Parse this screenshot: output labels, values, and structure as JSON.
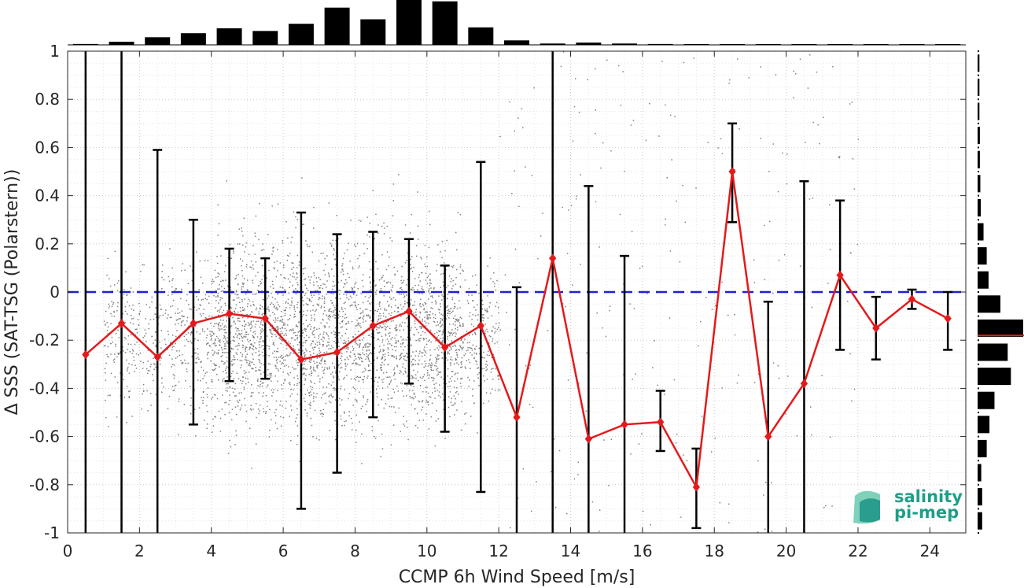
{
  "chart_data": {
    "type": "line",
    "xlabel": "CCMP 6h Wind Speed [m/s]",
    "ylabel": "Δ SSS (SAT-TSG (Polarstern))",
    "xlim": [
      0,
      25
    ],
    "ylim": [
      -1,
      1
    ],
    "xticks": [
      0,
      2,
      4,
      6,
      8,
      10,
      12,
      14,
      16,
      18,
      20,
      22,
      24
    ],
    "yticks": [
      -1,
      -0.8,
      -0.6,
      -0.4,
      -0.2,
      0,
      0.2,
      0.4,
      0.6,
      0.8,
      1
    ],
    "grid": true,
    "reference_line": {
      "y": 0,
      "style": "dashed",
      "color": "#1f1fd6"
    },
    "series": [
      {
        "color": "#e31a1c",
        "marker": "diamond",
        "x": [
          0.5,
          1.5,
          2.5,
          3.5,
          4.5,
          5.5,
          6.5,
          7.5,
          8.5,
          9.5,
          10.5,
          11.5,
          12.5,
          13.5,
          14.5,
          15.5,
          16.5,
          17.5,
          18.5,
          19.5,
          20.5,
          21.5,
          22.5,
          23.5,
          24.5
        ],
        "y": [
          -0.26,
          -0.13,
          -0.27,
          -0.13,
          -0.09,
          -0.11,
          -0.28,
          -0.25,
          -0.14,
          -0.08,
          -0.23,
          -0.14,
          -0.52,
          0.14,
          -0.61,
          -0.55,
          -0.54,
          -0.81,
          0.5,
          -0.6,
          -0.38,
          0.07,
          -0.15,
          -0.03,
          -0.11
        ],
        "err_low": [
          -1.0,
          -1.0,
          -1.0,
          -0.55,
          -0.37,
          -0.36,
          -0.9,
          -0.75,
          -0.52,
          -0.38,
          -0.58,
          -0.83,
          -1.0,
          -1.0,
          -1.0,
          -1.0,
          -0.66,
          -0.98,
          0.29,
          -1.0,
          -1.0,
          -0.24,
          -0.28,
          -0.07,
          -0.24
        ],
        "err_high": [
          1.0,
          1.0,
          0.59,
          0.3,
          0.18,
          0.14,
          0.33,
          0.24,
          0.25,
          0.22,
          0.11,
          0.54,
          0.02,
          1.0,
          0.44,
          0.15,
          -0.41,
          -0.65,
          0.7,
          -0.04,
          0.46,
          0.38,
          -0.02,
          0.01,
          0.0
        ]
      }
    ],
    "scatter_color": "#808080",
    "scatter_clusters": [
      {
        "x_range": [
          1,
          12
        ],
        "y_mean": -0.2,
        "y_spread": 0.25
      },
      {
        "x_range": [
          4,
          11
        ],
        "y_mean": -0.15,
        "y_spread": 0.35
      }
    ],
    "top_histogram": {
      "bin_centers": [
        0.5,
        1.5,
        2.5,
        3.5,
        4.5,
        5.5,
        6.5,
        7.5,
        8.5,
        9.5,
        10.5,
        11.5,
        12.5,
        13.5,
        14.5,
        15.5,
        16.5,
        17.5,
        18.5,
        19.5,
        20.5,
        21.5,
        22.5,
        23.5,
        24.5
      ],
      "relative_heights": [
        0.02,
        0.07,
        0.17,
        0.26,
        0.37,
        0.31,
        0.47,
        0.83,
        0.57,
        1.0,
        0.97,
        0.39,
        0.1,
        0.03,
        0.05,
        0.03,
        0.02,
        0.01,
        0.01,
        0.01,
        0.01,
        0.01,
        0.0,
        0.0,
        0.0
      ]
    },
    "right_histogram": {
      "bin_centers": [
        0.95,
        0.85,
        0.75,
        0.65,
        0.55,
        0.45,
        0.35,
        0.25,
        0.15,
        0.05,
        -0.05,
        -0.15,
        -0.25,
        -0.35,
        -0.45,
        -0.55,
        -0.65,
        -0.75,
        -0.85,
        -0.95
      ],
      "relative_heights": [
        0.04,
        0.04,
        0.04,
        0.05,
        0.05,
        0.06,
        0.07,
        0.13,
        0.2,
        0.24,
        0.5,
        1.0,
        0.66,
        0.73,
        0.37,
        0.26,
        0.2,
        0.08,
        0.1,
        0.1
      ],
      "mean": -0.18,
      "mean_color": "#e31a1c"
    }
  },
  "logo": {
    "line1": "salinity",
    "line2": "pi-mep",
    "color": "#1f9e89"
  }
}
